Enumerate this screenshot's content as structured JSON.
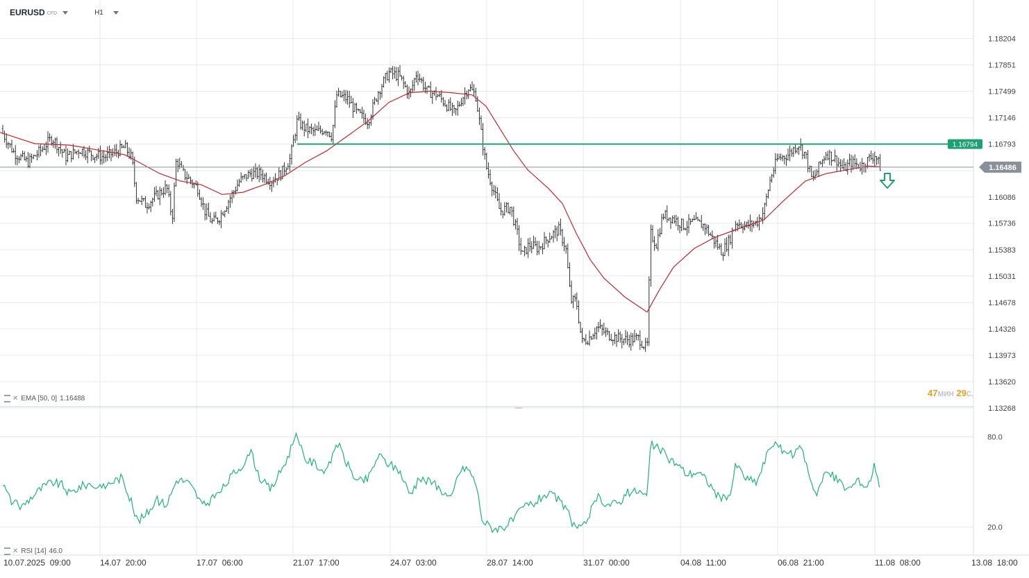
{
  "toolbar": {
    "symbol": "EURUSD",
    "symbol_tag": "CFD",
    "timeframe": "H1"
  },
  "indicators": {
    "ema_label": "EMA [50, 0]",
    "ema_value": "1.16488",
    "rsi_label": "RSI [14]",
    "rsi_value": "46.0"
  },
  "countdown": {
    "minutes": "47",
    "minutes_unit": "мин",
    "seconds": "29",
    "seconds_unit": "с."
  },
  "colors": {
    "price_bars": "#1a1a1a",
    "ema_line": "#c0282d",
    "rsi_line": "#1fb27a",
    "horizontal_level": "#1fa070",
    "current_price_tag": "#8a9099",
    "arrow": "#1fa070"
  },
  "icons": {
    "indicator_toggle": "indicator-toggle-icon",
    "close": "close-icon",
    "signal_arrow": "arrow-down-icon"
  },
  "chart_data": {
    "type": "candlestick",
    "timeframe": "H1",
    "x_ticks": [
      "10.07.2025  09:00",
      "14.07  20:00",
      "17.07  06:00",
      "21.07  17:00",
      "24.07  03:00",
      "28.07  14:00",
      "31.07  00:00",
      "04.08  11:00",
      "06.08  21:00",
      "11.08  08:00",
      "13.08  18:00"
    ],
    "y_ticks": [
      1.18204,
      1.17851,
      1.17499,
      1.17146,
      1.16793,
      1.16438,
      1.16086,
      1.15736,
      1.15383,
      1.15031,
      1.14678,
      1.14326,
      1.13973,
      1.1362,
      1.13268
    ],
    "y_tick_labels": [
      "1.18204",
      "1.17851",
      "1.17499",
      "1.17146",
      "1.16793",
      "",
      "1.16086",
      "1.15736",
      "1.15383",
      "1.15031",
      "1.14678",
      "1.14326",
      "1.13973",
      "1.13620",
      "1.13268"
    ],
    "ylim": [
      1.13268,
      1.18556
    ],
    "current_price": 1.16486,
    "current_price_label": "1.16486",
    "horizontal_level": 1.16794,
    "horizontal_level_label": "1.16794",
    "price_path": [
      [
        0,
        1.17
      ],
      [
        20,
        1.1668
      ],
      [
        40,
        1.1655
      ],
      [
        60,
        1.1672
      ],
      [
        75,
        1.1688
      ],
      [
        95,
        1.1662
      ],
      [
        115,
        1.1672
      ],
      [
        135,
        1.1665
      ],
      [
        150,
        1.1662
      ],
      [
        165,
        1.1668
      ],
      [
        180,
        1.1675
      ],
      [
        190,
        1.166
      ],
      [
        196,
        1.161
      ],
      [
        210,
        1.1598
      ],
      [
        225,
        1.161
      ],
      [
        240,
        1.1622
      ],
      [
        248,
        1.158
      ],
      [
        254,
        1.166
      ],
      [
        262,
        1.1642
      ],
      [
        275,
        1.163
      ],
      [
        285,
        1.162
      ],
      [
        295,
        1.159
      ],
      [
        305,
        1.1575
      ],
      [
        315,
        1.158
      ],
      [
        330,
        1.1605
      ],
      [
        345,
        1.163
      ],
      [
        360,
        1.164
      ],
      [
        375,
        1.164
      ],
      [
        390,
        1.163
      ],
      [
        405,
        1.164
      ],
      [
        418,
        1.166
      ],
      [
        428,
        1.171
      ],
      [
        440,
        1.17
      ],
      [
        455,
        1.1695
      ],
      [
        470,
        1.17
      ],
      [
        478,
        1.169
      ],
      [
        485,
        1.1745
      ],
      [
        500,
        1.174
      ],
      [
        515,
        1.172
      ],
      [
        530,
        1.171
      ],
      [
        545,
        1.175
      ],
      [
        560,
        1.1775
      ],
      [
        575,
        1.177
      ],
      [
        590,
        1.1745
      ],
      [
        600,
        1.1775
      ],
      [
        615,
        1.175
      ],
      [
        630,
        1.1745
      ],
      [
        645,
        1.173
      ],
      [
        655,
        1.172
      ],
      [
        665,
        1.174
      ],
      [
        675,
        1.1755
      ],
      [
        685,
        1.1745
      ],
      [
        692,
        1.17
      ],
      [
        700,
        1.165
      ],
      [
        710,
        1.162
      ],
      [
        720,
        1.159
      ],
      [
        735,
        1.1595
      ],
      [
        745,
        1.156
      ],
      [
        752,
        1.153
      ],
      [
        762,
        1.1545
      ],
      [
        775,
        1.154
      ],
      [
        790,
        1.1555
      ],
      [
        805,
        1.1565
      ],
      [
        815,
        1.154
      ],
      [
        822,
        1.147
      ],
      [
        830,
        1.147
      ],
      [
        838,
        1.1415
      ],
      [
        848,
        1.142
      ],
      [
        860,
        1.1435
      ],
      [
        875,
        1.1425
      ],
      [
        890,
        1.142
      ],
      [
        905,
        1.1418
      ],
      [
        920,
        1.142
      ],
      [
        932,
        1.1405
      ],
      [
        937,
        1.156
      ],
      [
        945,
        1.1545
      ],
      [
        955,
        1.1585
      ],
      [
        970,
        1.158
      ],
      [
        985,
        1.157
      ],
      [
        1000,
        1.1575
      ],
      [
        1015,
        1.157
      ],
      [
        1025,
        1.1555
      ],
      [
        1040,
        1.1535
      ],
      [
        1050,
        1.155
      ],
      [
        1060,
        1.1575
      ],
      [
        1075,
        1.157
      ],
      [
        1090,
        1.1575
      ],
      [
        1100,
        1.159
      ],
      [
        1110,
        1.1635
      ],
      [
        1120,
        1.166
      ],
      [
        1135,
        1.1665
      ],
      [
        1150,
        1.168
      ],
      [
        1160,
        1.1665
      ],
      [
        1170,
        1.163
      ],
      [
        1180,
        1.165
      ],
      [
        1190,
        1.1668
      ],
      [
        1205,
        1.1658
      ],
      [
        1215,
        1.1645
      ],
      [
        1225,
        1.1655
      ],
      [
        1240,
        1.165
      ],
      [
        1252,
        1.166
      ],
      [
        1260,
        1.1665
      ],
      [
        1268,
        1.1648
      ]
    ],
    "ema_path": [
      [
        0,
        1.1695
      ],
      [
        50,
        1.168
      ],
      [
        100,
        1.1678
      ],
      [
        150,
        1.167
      ],
      [
        180,
        1.1665
      ],
      [
        200,
        1.1655
      ],
      [
        230,
        1.164
      ],
      [
        260,
        1.163
      ],
      [
        290,
        1.1625
      ],
      [
        320,
        1.1612
      ],
      [
        350,
        1.1615
      ],
      [
        380,
        1.1625
      ],
      [
        410,
        1.1637
      ],
      [
        440,
        1.1655
      ],
      [
        470,
        1.167
      ],
      [
        500,
        1.169
      ],
      [
        530,
        1.171
      ],
      [
        560,
        1.1735
      ],
      [
        590,
        1.1748
      ],
      [
        620,
        1.175
      ],
      [
        650,
        1.1748
      ],
      [
        680,
        1.1745
      ],
      [
        700,
        1.173
      ],
      [
        720,
        1.17
      ],
      [
        740,
        1.167
      ],
      [
        760,
        1.1645
      ],
      [
        790,
        1.162
      ],
      [
        810,
        1.16
      ],
      [
        830,
        1.156
      ],
      [
        850,
        1.1525
      ],
      [
        870,
        1.15
      ],
      [
        900,
        1.1475
      ],
      [
        932,
        1.1455
      ],
      [
        950,
        1.1485
      ],
      [
        970,
        1.1515
      ],
      [
        1000,
        1.154
      ],
      [
        1030,
        1.1555
      ],
      [
        1060,
        1.1565
      ],
      [
        1100,
        1.1578
      ],
      [
        1130,
        1.1605
      ],
      [
        1160,
        1.163
      ],
      [
        1190,
        1.164
      ],
      [
        1220,
        1.1645
      ],
      [
        1250,
        1.165
      ],
      [
        1268,
        1.1649
      ]
    ],
    "rsi": {
      "label": "RSI [14]",
      "value": 46.0,
      "ylim": [
        10,
        89
      ],
      "levels": [
        80.0,
        20.0
      ],
      "level_labels": [
        "80.0",
        "20.0"
      ],
      "path": [
        [
          0,
          53
        ],
        [
          15,
          38
        ],
        [
          30,
          33
        ],
        [
          45,
          40
        ],
        [
          60,
          46
        ],
        [
          75,
          50
        ],
        [
          90,
          48
        ],
        [
          100,
          42
        ],
        [
          115,
          47
        ],
        [
          130,
          49
        ],
        [
          145,
          45
        ],
        [
          160,
          50
        ],
        [
          175,
          53
        ],
        [
          185,
          42
        ],
        [
          198,
          24
        ],
        [
          210,
          28
        ],
        [
          225,
          38
        ],
        [
          240,
          35
        ],
        [
          255,
          52
        ],
        [
          270,
          50
        ],
        [
          280,
          44
        ],
        [
          292,
          34
        ],
        [
          305,
          38
        ],
        [
          320,
          45
        ],
        [
          335,
          55
        ],
        [
          350,
          62
        ],
        [
          362,
          69
        ],
        [
          375,
          52
        ],
        [
          390,
          45
        ],
        [
          405,
          58
        ],
        [
          415,
          67
        ],
        [
          425,
          81
        ],
        [
          440,
          65
        ],
        [
          455,
          62
        ],
        [
          470,
          55
        ],
        [
          485,
          77
        ],
        [
          500,
          62
        ],
        [
          515,
          50
        ],
        [
          530,
          52
        ],
        [
          545,
          68
        ],
        [
          560,
          62
        ],
        [
          575,
          58
        ],
        [
          590,
          42
        ],
        [
          605,
          52
        ],
        [
          620,
          50
        ],
        [
          635,
          45
        ],
        [
          650,
          38
        ],
        [
          660,
          56
        ],
        [
          672,
          60
        ],
        [
          685,
          50
        ],
        [
          695,
          24
        ],
        [
          710,
          19
        ],
        [
          725,
          20
        ],
        [
          740,
          25
        ],
        [
          755,
          34
        ],
        [
          770,
          36
        ],
        [
          785,
          42
        ],
        [
          800,
          40
        ],
        [
          815,
          32
        ],
        [
          825,
          22
        ],
        [
          838,
          18
        ],
        [
          850,
          30
        ],
        [
          862,
          40
        ],
        [
          875,
          35
        ],
        [
          890,
          36
        ],
        [
          905,
          43
        ],
        [
          920,
          44
        ],
        [
          932,
          40
        ],
        [
          937,
          75
        ],
        [
          950,
          72
        ],
        [
          962,
          66
        ],
        [
          975,
          62
        ],
        [
          990,
          55
        ],
        [
          1005,
          57
        ],
        [
          1020,
          50
        ],
        [
          1035,
          40
        ],
        [
          1050,
          38
        ],
        [
          1060,
          62
        ],
        [
          1075,
          52
        ],
        [
          1090,
          50
        ],
        [
          1100,
          62
        ],
        [
          1110,
          75
        ],
        [
          1125,
          72
        ],
        [
          1140,
          68
        ],
        [
          1155,
          72
        ],
        [
          1165,
          56
        ],
        [
          1175,
          42
        ],
        [
          1190,
          57
        ],
        [
          1205,
          52
        ],
        [
          1220,
          45
        ],
        [
          1235,
          50
        ],
        [
          1250,
          47
        ],
        [
          1260,
          62
        ],
        [
          1268,
          46
        ]
      ]
    }
  }
}
